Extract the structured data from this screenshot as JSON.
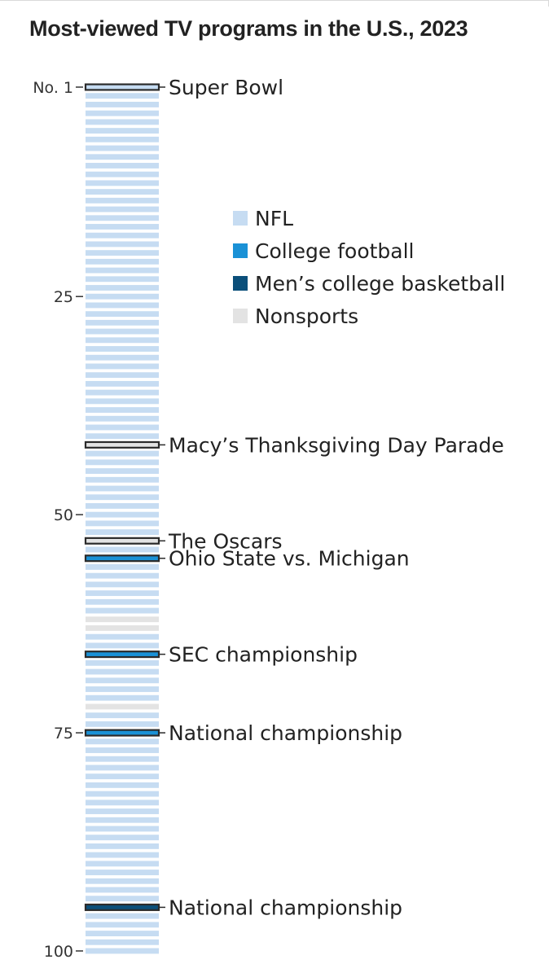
{
  "chart_data": {
    "type": "ranked-strip",
    "title": "Most-viewed TV programs in the U.S., 2023",
    "rank_range": [
      1,
      100
    ],
    "ticks": [
      {
        "rank": 1,
        "label": "No. 1"
      },
      {
        "rank": 25,
        "label": "25"
      },
      {
        "rank": 50,
        "label": "50"
      },
      {
        "rank": 75,
        "label": "75"
      },
      {
        "rank": 100,
        "label": "100"
      }
    ],
    "categories": [
      {
        "key": "nfl",
        "label": "NFL",
        "color": "#c6dcf2"
      },
      {
        "key": "college",
        "label": "College football",
        "color": "#1a91d6"
      },
      {
        "key": "mcbb",
        "label": "Men’s college basketball",
        "color": "#0b4f7a"
      },
      {
        "key": "nonsports",
        "label": "Nonsports",
        "color": "#e3e3e3"
      }
    ],
    "default_category": "nfl",
    "items": [
      {
        "rank": 1,
        "category": "nfl",
        "label": "Super Bowl",
        "highlight": true
      },
      {
        "rank": 42,
        "category": "nonsports",
        "label": "Macy’s Thanksgiving Day Parade",
        "highlight": true
      },
      {
        "rank": 53,
        "category": "nonsports",
        "label": "The Oscars",
        "highlight": true
      },
      {
        "rank": 55,
        "category": "college",
        "label": "Ohio State vs. Michigan",
        "highlight": true
      },
      {
        "rank": 62,
        "category": "nonsports",
        "label": "",
        "highlight": false
      },
      {
        "rank": 63,
        "category": "nonsports",
        "label": "",
        "highlight": false
      },
      {
        "rank": 66,
        "category": "college",
        "label": "SEC championship",
        "highlight": true
      },
      {
        "rank": 72,
        "category": "nonsports",
        "label": "",
        "highlight": false
      },
      {
        "rank": 75,
        "category": "college",
        "label": "National championship",
        "highlight": true
      },
      {
        "rank": 95,
        "category": "mcbb",
        "label": "National championship",
        "highlight": true
      }
    ]
  }
}
